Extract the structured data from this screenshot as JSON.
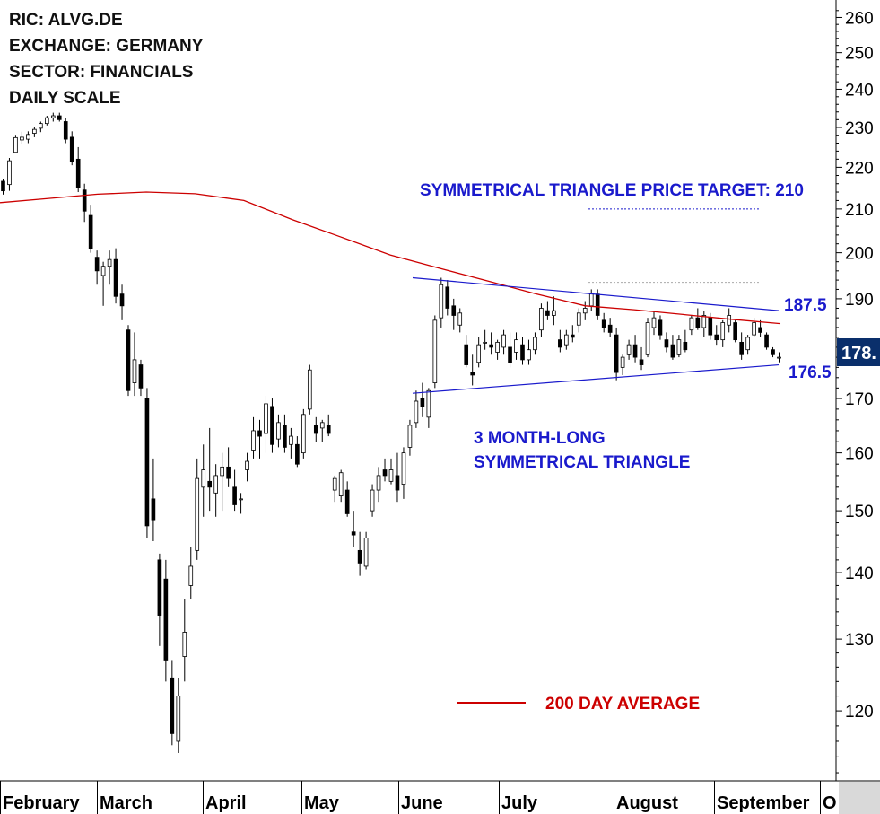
{
  "header": {
    "ric": "RIC: ALVG.DE",
    "exchange": "EXCHANGE: GERMANY",
    "sector": "SECTOR: FINANCIALS",
    "scale": "DAILY SCALE"
  },
  "colors": {
    "candle_outline": "#000000",
    "ma_line": "#cc0000",
    "trend_line": "#1a1acc",
    "annotation_blue": "#1a1acc",
    "annotation_red": "#cc0000",
    "last_price_bg": "#0a2f6b",
    "corner_box": "#d9d9d9"
  },
  "chart_data": {
    "type": "candlestick",
    "scale": "log",
    "ylim": [
      111,
      263
    ],
    "y_ticks": [
      120,
      130,
      140,
      150,
      160,
      170,
      180,
      190,
      200,
      210,
      220,
      230,
      240,
      250,
      260
    ],
    "x_labels": [
      "February",
      "March",
      "April",
      "May",
      "June",
      "July",
      "August",
      "September",
      "O"
    ],
    "grid": false,
    "legend": "bottom-center",
    "last_price_label": "178.",
    "series": [
      {
        "name": "200 DAY AVERAGE",
        "type": "line",
        "values": [
          211.5,
          212.5,
          213.5,
          214.0,
          213.6,
          212.0,
          207.5,
          203.5,
          199.5,
          196.6,
          193.8,
          191.0,
          188.5,
          187.7,
          186.7,
          185.7,
          184.8
        ]
      }
    ],
    "trendlines": [
      {
        "label": "187.5",
        "from": [
          0.0,
          194.5
        ],
        "to": [
          1.0,
          187.5
        ]
      },
      {
        "label": "176.5",
        "from": [
          0.0,
          171.0
        ],
        "to": [
          1.0,
          176.5
        ]
      }
    ],
    "target": {
      "label": "SYMMETRICAL TRIANGLE PRICE TARGET: 210",
      "value": 210
    },
    "pattern_high_reference": 193.5,
    "annotations": [
      "SYMMETRICAL TRIANGLE PRICE TARGET: 210",
      "3 MONTH-LONG",
      "SYMMETRICAL TRIANGLE",
      "187.5",
      "176.5"
    ],
    "candles": [
      [
        216.6,
        217.1,
        213.4,
        214.3
      ],
      [
        215.8,
        222.3,
        214.3,
        221.6
      ],
      [
        223.7,
        228.1,
        223.7,
        227.4
      ],
      [
        226.8,
        228.9,
        225.7,
        227.5
      ],
      [
        227.0,
        229.0,
        226.0,
        228.2
      ],
      [
        228.5,
        230.0,
        227.5,
        229.5
      ],
      [
        229.8,
        231.5,
        228.8,
        231.0
      ],
      [
        231.0,
        233.0,
        230.5,
        232.5
      ],
      [
        232.5,
        233.8,
        231.5,
        233.0
      ],
      [
        233.0,
        233.8,
        231.5,
        232.0
      ],
      [
        231.5,
        232.5,
        226.0,
        227.0
      ],
      [
        227.5,
        229.0,
        220.5,
        221.5
      ],
      [
        222.0,
        225.0,
        214.0,
        215.0
      ],
      [
        214.5,
        216.0,
        207.0,
        209.5
      ],
      [
        208.5,
        211.0,
        200.0,
        201.0
      ],
      [
        199.0,
        200.5,
        193.0,
        196.0
      ],
      [
        195.0,
        198.0,
        188.5,
        197.0
      ],
      [
        197.0,
        200.5,
        193.0,
        198.5
      ],
      [
        198.5,
        201.0,
        189.0,
        190.5
      ],
      [
        191.0,
        193.0,
        185.5,
        188.5
      ],
      [
        183.5,
        184.5,
        170.5,
        171.5
      ],
      [
        173.0,
        183.0,
        170.5,
        177.5
      ],
      [
        176.5,
        177.5,
        170.5,
        172.0
      ],
      [
        170.0,
        172.0,
        145.5,
        147.5
      ],
      [
        152.0,
        159.0,
        145.0,
        148.5
      ],
      [
        142.0,
        143.0,
        129.0,
        133.5
      ],
      [
        139.0,
        142.0,
        124.0,
        127.0
      ],
      [
        124.5,
        127.0,
        115.5,
        117.0
      ],
      [
        116.0,
        124.5,
        114.5,
        122.0
      ],
      [
        127.5,
        136.0,
        124.0,
        131.0
      ],
      [
        138.0,
        144.0,
        136.0,
        141.0
      ],
      [
        143.5,
        159.0,
        142.0,
        155.5
      ],
      [
        154.0,
        161.5,
        149.0,
        157.0
      ],
      [
        155.0,
        164.5,
        150.0,
        154.0
      ],
      [
        153.0,
        158.0,
        149.0,
        156.0
      ],
      [
        156.0,
        160.0,
        150.0,
        157.5
      ],
      [
        157.5,
        161.0,
        154.0,
        155.5
      ],
      [
        154.0,
        157.0,
        150.0,
        151.0
      ],
      [
        152.0,
        153.0,
        149.5,
        152.0
      ],
      [
        157.0,
        160.0,
        155.0,
        158.5
      ],
      [
        160.5,
        166.5,
        159.0,
        164.0
      ],
      [
        164.0,
        166.0,
        159.0,
        163.0
      ],
      [
        163.5,
        170.5,
        160.0,
        169.0
      ],
      [
        168.5,
        170.0,
        160.0,
        161.5
      ],
      [
        162.5,
        167.0,
        161.0,
        165.5
      ],
      [
        165.0,
        167.0,
        160.0,
        161.0
      ],
      [
        161.5,
        164.5,
        159.0,
        163.0
      ],
      [
        161.5,
        163.0,
        157.5,
        158.0
      ],
      [
        160.0,
        168.0,
        159.0,
        167.0
      ],
      [
        168.0,
        176.5,
        167.0,
        175.5
      ],
      [
        165.0,
        166.5,
        162.0,
        163.5
      ],
      [
        164.5,
        166.0,
        162.0,
        165.5
      ],
      [
        165.0,
        167.0,
        163.0,
        163.5
      ],
      [
        153.5,
        156.0,
        151.5,
        155.5
      ],
      [
        152.5,
        157.0,
        151.5,
        156.5
      ],
      [
        153.5,
        155.0,
        149.0,
        149.5
      ],
      [
        146.5,
        150.0,
        144.0,
        146.0
      ],
      [
        143.5,
        146.5,
        139.5,
        141.5
      ],
      [
        141.0,
        146.5,
        140.5,
        145.5
      ],
      [
        150.0,
        154.5,
        149.0,
        153.5
      ],
      [
        153.5,
        157.5,
        151.5,
        156.0
      ],
      [
        157.0,
        159.0,
        155.0,
        156.0
      ],
      [
        155.0,
        159.0,
        154.5,
        157.0
      ],
      [
        156.0,
        160.0,
        151.5,
        153.5
      ],
      [
        154.5,
        161.0,
        152.0,
        160.0
      ],
      [
        161.0,
        166.0,
        159.5,
        165.0
      ],
      [
        165.5,
        171.5,
        164.5,
        169.5
      ],
      [
        170.0,
        173.0,
        166.5,
        168.5
      ],
      [
        166.5,
        172.0,
        164.5,
        171.5
      ],
      [
        173.0,
        186.5,
        172.0,
        185.5
      ],
      [
        186.0,
        194.5,
        184.0,
        193.0
      ],
      [
        192.5,
        194.0,
        186.5,
        188.0
      ],
      [
        188.5,
        190.0,
        183.5,
        186.5
      ],
      [
        184.5,
        188.0,
        183.0,
        187.0
      ],
      [
        180.5,
        182.5,
        176.0,
        176.5
      ],
      [
        175.0,
        178.5,
        172.5,
        174.5
      ],
      [
        177.0,
        182.0,
        176.0,
        180.5
      ],
      [
        181.0,
        183.5,
        179.5,
        181.0
      ],
      [
        180.5,
        183.0,
        178.5,
        180.0
      ],
      [
        179.0,
        181.5,
        177.5,
        181.0
      ],
      [
        180.0,
        183.5,
        178.5,
        182.5
      ],
      [
        180.0,
        183.0,
        176.0,
        177.0
      ],
      [
        179.0,
        183.0,
        177.5,
        181.5
      ],
      [
        180.5,
        182.0,
        176.5,
        177.5
      ],
      [
        177.5,
        181.5,
        176.5,
        179.5
      ],
      [
        179.5,
        183.0,
        178.5,
        182.0
      ],
      [
        183.5,
        189.0,
        182.0,
        188.0
      ],
      [
        187.5,
        189.5,
        185.5,
        186.5
      ],
      [
        186.5,
        190.5,
        184.5,
        187.5
      ],
      [
        181.5,
        183.5,
        179.0,
        180.0
      ],
      [
        180.5,
        183.5,
        179.5,
        182.5
      ],
      [
        182.5,
        184.5,
        181.0,
        182.0
      ],
      [
        184.5,
        188.0,
        183.0,
        187.0
      ],
      [
        187.0,
        189.5,
        185.5,
        188.0
      ],
      [
        188.5,
        192.0,
        187.5,
        191.0
      ],
      [
        191.0,
        192.0,
        185.5,
        186.5
      ],
      [
        185.5,
        187.0,
        183.0,
        184.0
      ],
      [
        184.5,
        186.0,
        182.0,
        183.0
      ],
      [
        182.5,
        184.0,
        173.5,
        175.0
      ],
      [
        176.0,
        178.5,
        174.5,
        178.0
      ],
      [
        178.5,
        181.5,
        177.5,
        180.5
      ],
      [
        180.5,
        182.5,
        177.0,
        178.0
      ],
      [
        177.5,
        180.0,
        175.5,
        176.5
      ],
      [
        178.5,
        186.0,
        178.0,
        185.0
      ],
      [
        184.0,
        187.5,
        182.5,
        186.0
      ],
      [
        185.5,
        186.5,
        181.5,
        182.5
      ],
      [
        181.5,
        183.0,
        179.0,
        180.0
      ],
      [
        180.5,
        182.5,
        177.5,
        178.0
      ],
      [
        178.5,
        182.5,
        178.0,
        181.5
      ],
      [
        181.0,
        183.5,
        179.0,
        179.5
      ],
      [
        183.5,
        186.5,
        182.5,
        186.0
      ],
      [
        186.0,
        188.0,
        183.5,
        184.0
      ],
      [
        184.0,
        187.5,
        182.0,
        186.5
      ],
      [
        186.0,
        187.0,
        181.5,
        182.5
      ],
      [
        182.5,
        184.5,
        180.5,
        181.5
      ],
      [
        181.5,
        185.5,
        180.0,
        185.0
      ],
      [
        184.5,
        188.0,
        183.0,
        186.5
      ],
      [
        185.0,
        185.5,
        181.0,
        181.5
      ],
      [
        181.0,
        183.0,
        177.5,
        178.5
      ],
      [
        179.5,
        182.5,
        178.5,
        182.0
      ],
      [
        182.5,
        186.0,
        182.0,
        185.0
      ],
      [
        184.0,
        185.5,
        182.0,
        183.0
      ],
      [
        182.5,
        183.0,
        179.5,
        180.0
      ],
      [
        179.5,
        180.0,
        178.0,
        178.5
      ],
      [
        178.0,
        179.0,
        177.0,
        178.0
      ]
    ]
  }
}
